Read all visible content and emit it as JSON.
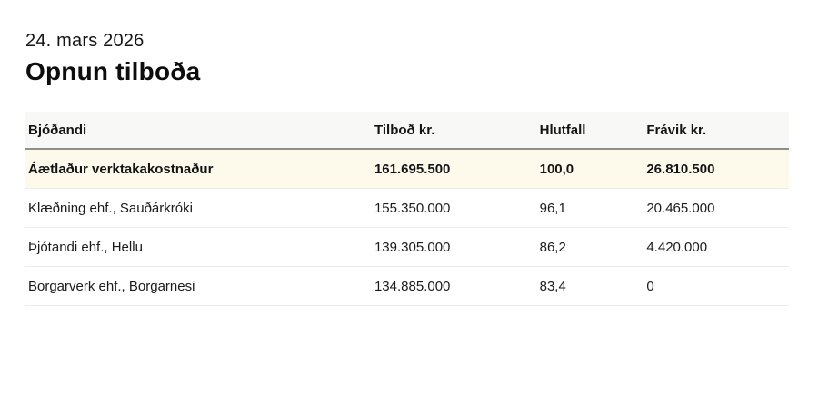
{
  "page": {
    "date": "24. mars 2026",
    "title": "Opnun tilboða"
  },
  "table": {
    "columns": {
      "bidder": "Bjóðandi",
      "bid": "Tilboð kr.",
      "ratio": "Hlutfall",
      "deviation": "Frávik kr."
    },
    "rows": [
      {
        "bidder": "Áætlaður verktakakostnaður",
        "bid": "161.695.500",
        "ratio": "100,0",
        "deviation": "26.810.500",
        "highlight": true
      },
      {
        "bidder": "Klæðning ehf., Sauðárkróki",
        "bid": "155.350.000",
        "ratio": "96,1",
        "deviation": "20.465.000",
        "highlight": false
      },
      {
        "bidder": "Þjótandi ehf., Hellu",
        "bid": "139.305.000",
        "ratio": "86,2",
        "deviation": "4.420.000",
        "highlight": false
      },
      {
        "bidder": "Borgarverk ehf., Borgarnesi",
        "bid": "134.885.000",
        "ratio": "83,4",
        "deviation": "0",
        "highlight": false
      }
    ],
    "colors": {
      "header_bg": "#f8f8f7",
      "header_rule": "#908f88",
      "highlight_bg": "#fdfaec",
      "row_divider": "#ececec",
      "text": "#141414"
    }
  }
}
